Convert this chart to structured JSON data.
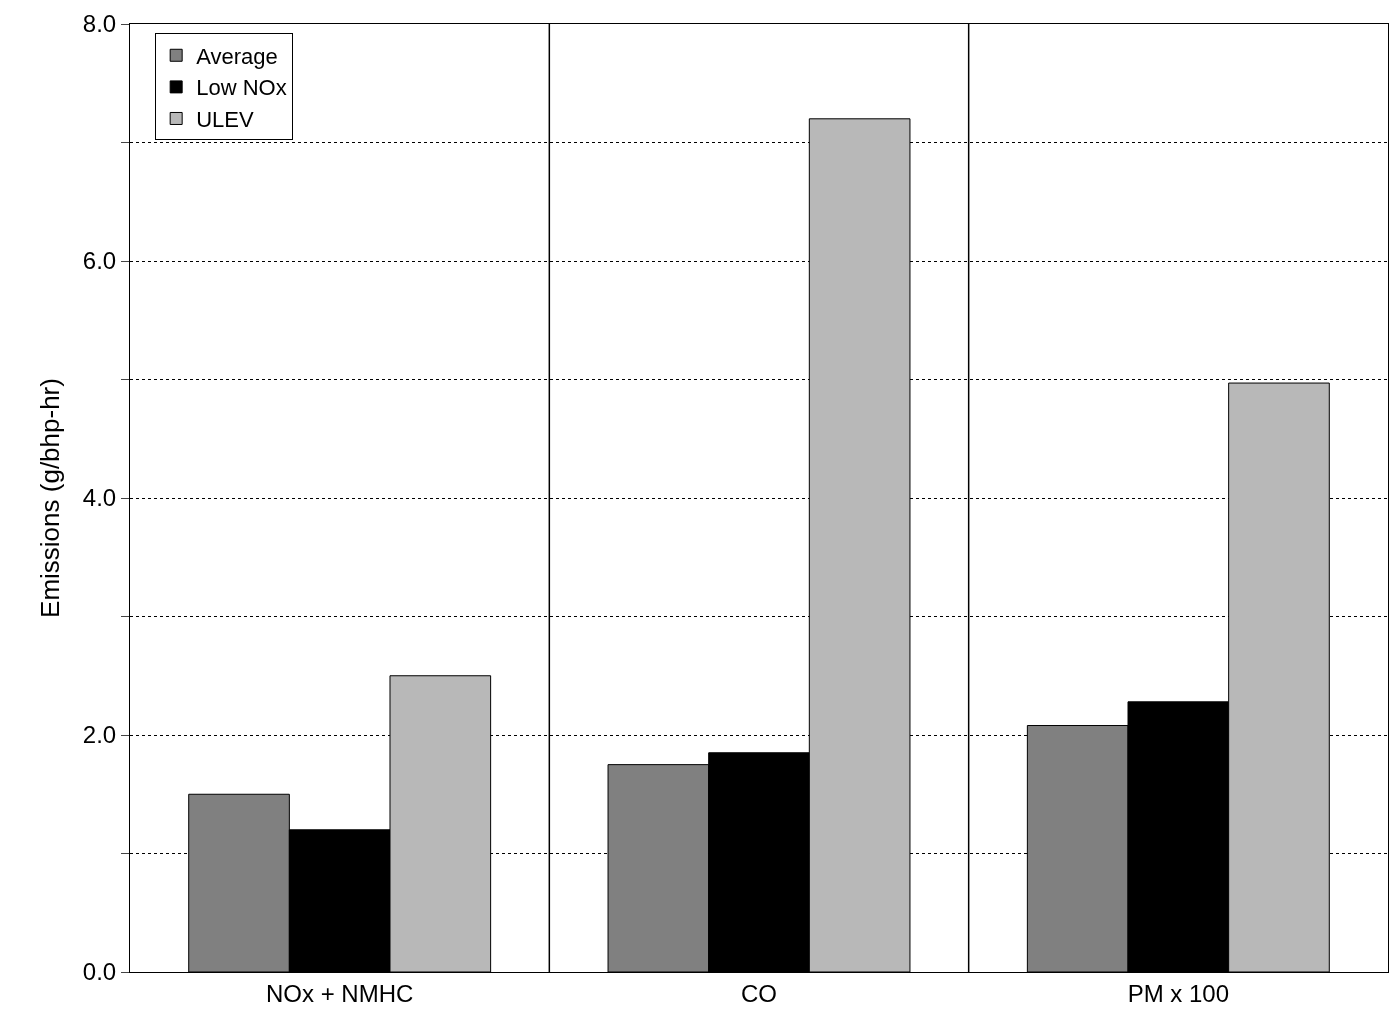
{
  "chart_data": {
    "type": "bar",
    "ylabel": "Emissions (g/bhp-hr)",
    "categories": [
      "NOx + NMHC",
      "CO",
      "PM x 100"
    ],
    "series": [
      {
        "name": "Average",
        "color": "#808080",
        "values": [
          1.5,
          1.75,
          2.08
        ]
      },
      {
        "name": "Low NOx",
        "color": "#000000",
        "values": [
          1.2,
          1.85,
          2.28
        ]
      },
      {
        "name": "ULEV",
        "color": "#b8b8b8",
        "values": [
          2.5,
          7.2,
          4.97
        ]
      }
    ],
    "ylim": [
      0,
      8
    ],
    "yticks": [
      {
        "value": 0,
        "label": "0.0"
      },
      {
        "value": 1,
        "label": null
      },
      {
        "value": 2,
        "label": "2.0"
      },
      {
        "value": 3,
        "label": null
      },
      {
        "value": 4,
        "label": "4.0"
      },
      {
        "value": 5,
        "label": null
      },
      {
        "value": 6,
        "label": "6.0"
      },
      {
        "value": 7,
        "label": null
      },
      {
        "value": 8,
        "label": "8.0"
      }
    ],
    "grid": true,
    "legend": "top left"
  }
}
